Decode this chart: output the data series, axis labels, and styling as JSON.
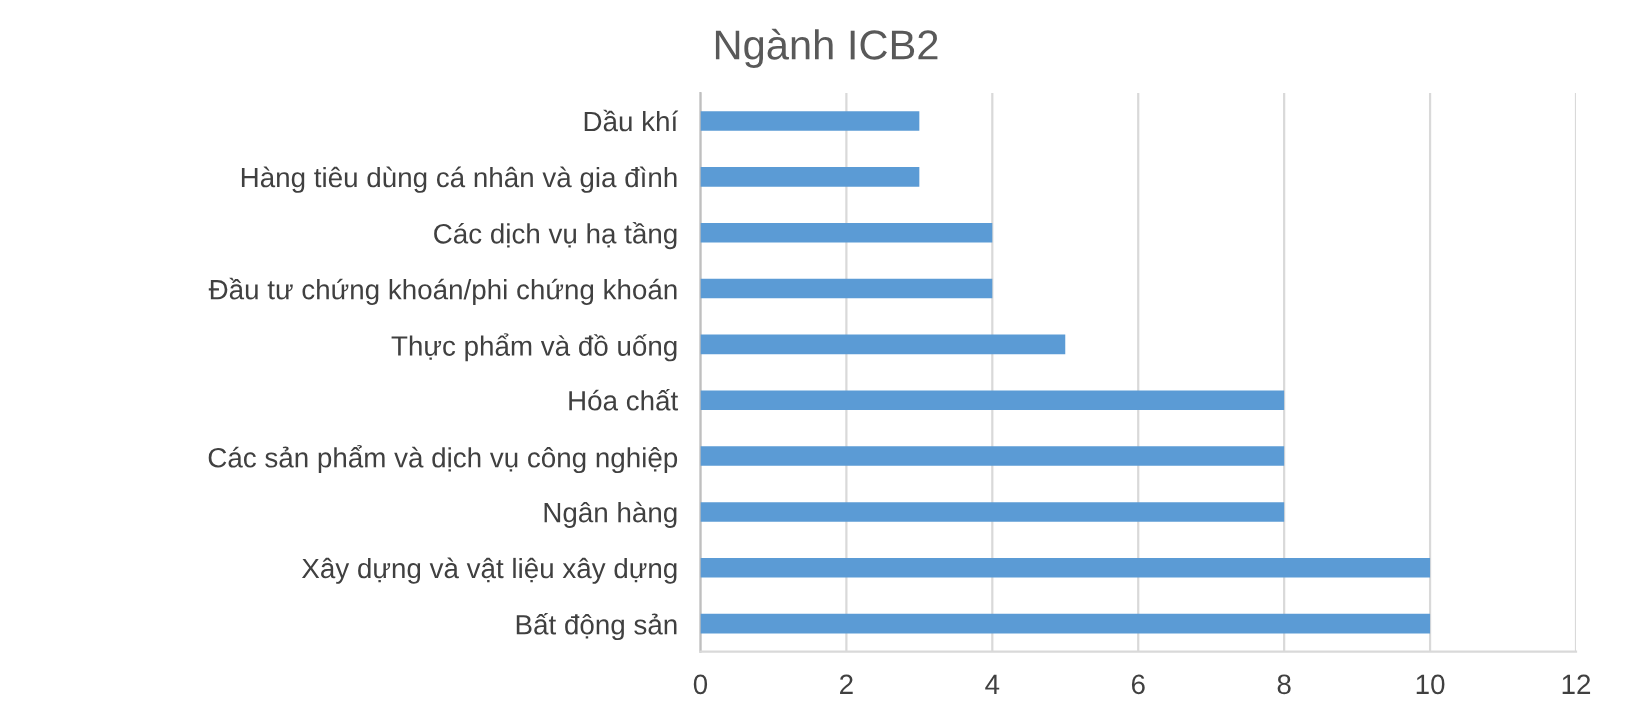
{
  "chart_data": {
    "type": "bar",
    "orientation": "horizontal",
    "title": "Ngành ICB2",
    "categories": [
      "Dầu khí",
      "Hàng tiêu dùng cá nhân và gia đình",
      "Các dịch vụ hạ tầng",
      "Đầu tư chứng khoán/phi chứng khoán",
      "Thực phẩm và đồ uống",
      "Hóa chất",
      "Các sản phẩm và dịch vụ công nghiệp",
      "Ngân hàng",
      "Xây dựng và vật liệu xây dựng",
      "Bất động sản"
    ],
    "values": [
      3,
      3,
      4,
      4,
      5,
      8,
      8,
      8,
      10,
      10
    ],
    "color": "#5b9bd5",
    "xlim": [
      0,
      12
    ],
    "xticks": [
      0,
      2,
      4,
      6,
      8,
      10,
      12
    ],
    "grid": "x",
    "legend": false
  }
}
